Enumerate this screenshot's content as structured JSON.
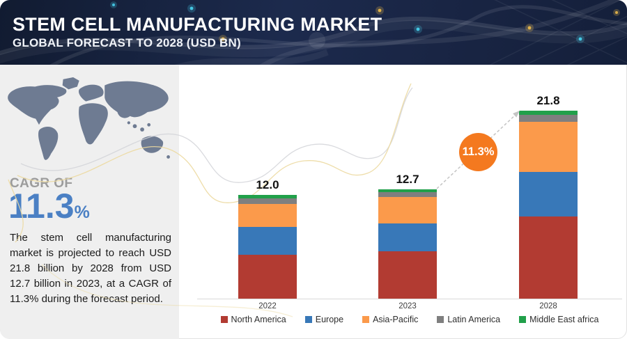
{
  "header": {
    "title": "STEM CELL MANUFACTURING MARKET",
    "subtitle": "GLOBAL FORECAST TO 2028 (USD BN)"
  },
  "sidebar": {
    "cagr_label": "CAGR OF",
    "cagr_value": "11.3",
    "cagr_unit": "%",
    "description": "The stem cell manufacturing market is projected to reach USD 21.8 billion by 2028 from USD 12.7 billion in 2023, at a CAGR of 11.3% during the forecast period."
  },
  "callout": {
    "label": "11.3%",
    "color": "#f4791f"
  },
  "chart_data": {
    "type": "bar",
    "stacked": true,
    "unit": "USD BN",
    "categories": [
      "2022",
      "2023",
      "2028"
    ],
    "totals": [
      12.0,
      12.7,
      21.8
    ],
    "total_labels": [
      "12.0",
      "12.7",
      "21.8"
    ],
    "series": [
      {
        "name": "North America",
        "color": "#b23b32",
        "values": [
          5.1,
          5.5,
          9.5
        ]
      },
      {
        "name": "Europe",
        "color": "#3878b8",
        "values": [
          3.2,
          3.2,
          5.2
        ]
      },
      {
        "name": "Asia-Pacific",
        "color": "#fb9a4b",
        "values": [
          2.7,
          3.1,
          5.8
        ]
      },
      {
        "name": "Latin America",
        "color": "#7f7f7f",
        "values": [
          0.6,
          0.5,
          0.8
        ]
      },
      {
        "name": "Middle East africa",
        "color": "#21a04a",
        "values": [
          0.4,
          0.4,
          0.5
        ]
      }
    ],
    "ylim": [
      0,
      22
    ],
    "grid": false,
    "legend_position": "bottom",
    "annotation": {
      "text": "11.3%",
      "type": "growth-arrow",
      "from_category": "2023",
      "to_category": "2028"
    }
  }
}
